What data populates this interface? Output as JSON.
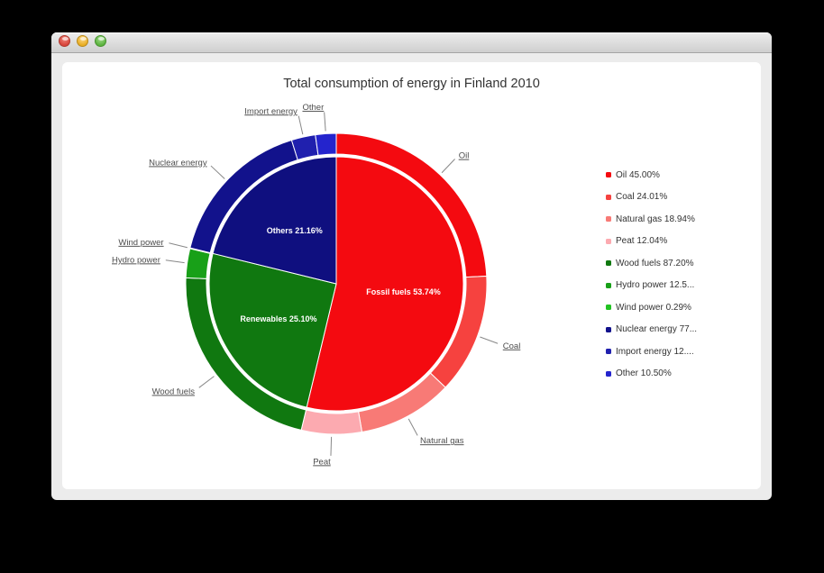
{
  "window": {
    "chrome": "mac-titlebar",
    "buttons": [
      {
        "name": "close",
        "color": "#d8453c"
      },
      {
        "name": "minimize",
        "color": "#e9ae24"
      },
      {
        "name": "zoom",
        "color": "#5cb33f"
      }
    ]
  },
  "chart_data": {
    "type": "pie",
    "variant": "two-level-donut",
    "title": "Total consumption of energy in Finland 2010",
    "legend_position": "right",
    "background": "#ffffff",
    "point_label_color": "#4d4d4d",
    "connector_color": "#888888",
    "data_label_color": "#ffffff",
    "categories": [
      {
        "name": "Fossil fuels",
        "data_label": "Fossil fuels 53.74%",
        "value": 53.74,
        "color": "#f40a10",
        "children": [
          {
            "name": "Oil",
            "value": 45.0,
            "legend_label": "Oil 45.00%",
            "color": "#f40a10"
          },
          {
            "name": "Coal",
            "value": 24.01,
            "legend_label": "Coal 24.01%",
            "color": "#f6423f"
          },
          {
            "name": "Natural gas",
            "value": 18.94,
            "legend_label": "Natural gas 18.94%",
            "color": "#f87a76"
          },
          {
            "name": "Peat",
            "value": 12.04,
            "legend_label": "Peat 12.04%",
            "color": "#fcaab0"
          }
        ]
      },
      {
        "name": "Renewables",
        "data_label": "Renewables 25.10%",
        "value": 25.1,
        "color": "#107810",
        "children": [
          {
            "name": "Wood fuels",
            "value": 87.2,
            "legend_label": "Wood fuels 87.20%",
            "color": "#107810"
          },
          {
            "name": "Hydro power",
            "value": 12.51,
            "legend_label": "Hydro power 12.5...",
            "color": "#18a018"
          },
          {
            "name": "Wind power",
            "value": 0.29,
            "legend_label": "Wind power 0.29%",
            "color": "#22c322"
          }
        ]
      },
      {
        "name": "Others",
        "data_label": "Others 21.16%",
        "value": 21.16,
        "color": "#0f0f7f",
        "children": [
          {
            "name": "Nuclear energy",
            "value": 77.33,
            "legend_label": "Nuclear energy 77...",
            "color": "#12128c"
          },
          {
            "name": "Import energy",
            "value": 12.17,
            "legend_label": "Import energy 12....",
            "color": "#2020ae"
          },
          {
            "name": "Other",
            "value": 10.5,
            "legend_label": "Other 10.50%",
            "color": "#2424cd"
          }
        ]
      }
    ]
  }
}
